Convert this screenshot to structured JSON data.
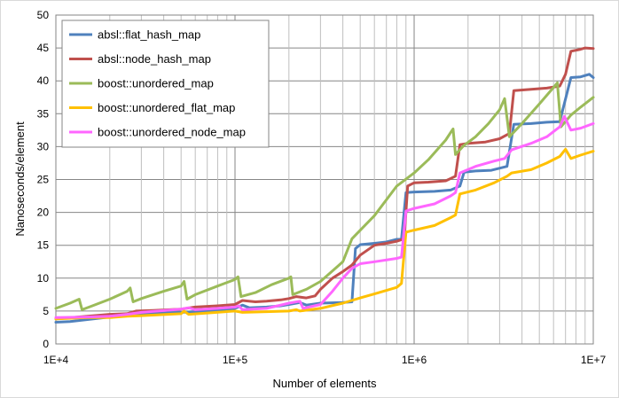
{
  "chart_data": {
    "type": "line",
    "title": "",
    "xlabel": "Number of elements",
    "ylabel": "Nanoseconds/element",
    "x_scale": "log",
    "xlim": [
      10000,
      10000000
    ],
    "ylim": [
      0,
      50
    ],
    "x_ticks": [
      10000,
      100000,
      1000000,
      10000000
    ],
    "x_tick_labels": [
      "1E+4",
      "1E+5",
      "1E+6",
      "1E+7"
    ],
    "y_ticks": [
      0,
      5,
      10,
      15,
      20,
      25,
      30,
      35,
      40,
      45,
      50
    ],
    "y_tick_labels": [
      "0",
      "5",
      "10",
      "15",
      "20",
      "25",
      "30",
      "35",
      "40",
      "45",
      "50"
    ],
    "grid": "major and minor gridlines",
    "legend_position": "top-left",
    "series": [
      {
        "name": "absl::flat_hash_map",
        "color": "#4f81bd",
        "points": [
          [
            10000,
            3.3
          ],
          [
            12000,
            3.4
          ],
          [
            15000,
            3.7
          ],
          [
            20000,
            4.1
          ],
          [
            25000,
            4.3
          ],
          [
            30000,
            4.5
          ],
          [
            40000,
            4.7
          ],
          [
            50000,
            4.8
          ],
          [
            60000,
            4.9
          ],
          [
            80000,
            5.1
          ],
          [
            100000,
            5.4
          ],
          [
            110000,
            5.9
          ],
          [
            120000,
            5.5
          ],
          [
            150000,
            5.6
          ],
          [
            180000,
            5.8
          ],
          [
            200000,
            6.0
          ],
          [
            230000,
            6.3
          ],
          [
            250000,
            5.9
          ],
          [
            300000,
            6.2
          ],
          [
            400000,
            6.3
          ],
          [
            450000,
            6.4
          ],
          [
            470000,
            14.5
          ],
          [
            500000,
            15.1
          ],
          [
            600000,
            15.3
          ],
          [
            700000,
            15.5
          ],
          [
            800000,
            15.9
          ],
          [
            850000,
            15.9
          ],
          [
            900000,
            23.0
          ],
          [
            1000000,
            23.1
          ],
          [
            1300000,
            23.2
          ],
          [
            1600000,
            23.4
          ],
          [
            1800000,
            24.0
          ],
          [
            1900000,
            26.1
          ],
          [
            2200000,
            26.3
          ],
          [
            2700000,
            26.4
          ],
          [
            3300000,
            27.0
          ],
          [
            3600000,
            33.4
          ],
          [
            4500000,
            33.5
          ],
          [
            5500000,
            33.7
          ],
          [
            6500000,
            33.8
          ],
          [
            7500000,
            40.5
          ],
          [
            8500000,
            40.6
          ],
          [
            9500000,
            41.0
          ],
          [
            10000000,
            40.5
          ]
        ]
      },
      {
        "name": "absl::node_hash_map",
        "color": "#c0504d",
        "points": [
          [
            10000,
            3.8
          ],
          [
            15000,
            4.2
          ],
          [
            20000,
            4.5
          ],
          [
            25000,
            4.6
          ],
          [
            28000,
            5.0
          ],
          [
            35000,
            5.1
          ],
          [
            50000,
            5.3
          ],
          [
            60000,
            5.6
          ],
          [
            80000,
            5.8
          ],
          [
            100000,
            6.0
          ],
          [
            110000,
            6.6
          ],
          [
            130000,
            6.4
          ],
          [
            150000,
            6.5
          ],
          [
            180000,
            6.7
          ],
          [
            200000,
            6.9
          ],
          [
            220000,
            7.2
          ],
          [
            250000,
            7.0
          ],
          [
            280000,
            7.3
          ],
          [
            300000,
            8.3
          ],
          [
            350000,
            10.0
          ],
          [
            400000,
            11.0
          ],
          [
            450000,
            12.0
          ],
          [
            500000,
            13.5
          ],
          [
            600000,
            15.0
          ],
          [
            700000,
            15.3
          ],
          [
            800000,
            15.6
          ],
          [
            880000,
            16.0
          ],
          [
            920000,
            24.0
          ],
          [
            1000000,
            24.5
          ],
          [
            1200000,
            24.6
          ],
          [
            1500000,
            24.8
          ],
          [
            1700000,
            25.5
          ],
          [
            1800000,
            30.3
          ],
          [
            2000000,
            30.5
          ],
          [
            2500000,
            30.7
          ],
          [
            3000000,
            31.2
          ],
          [
            3400000,
            32.0
          ],
          [
            3600000,
            38.5
          ],
          [
            4500000,
            38.7
          ],
          [
            5500000,
            38.9
          ],
          [
            6500000,
            39.2
          ],
          [
            7000000,
            41.0
          ],
          [
            7500000,
            44.5
          ],
          [
            8500000,
            44.8
          ],
          [
            9000000,
            45.0
          ],
          [
            10000000,
            44.9
          ]
        ]
      },
      {
        "name": "boost::unordered_map",
        "color": "#9bbb59",
        "points": [
          [
            10000,
            5.4
          ],
          [
            12000,
            6.2
          ],
          [
            13500,
            6.8
          ],
          [
            14000,
            5.2
          ],
          [
            16000,
            5.8
          ],
          [
            20000,
            6.8
          ],
          [
            25000,
            8.0
          ],
          [
            26000,
            8.5
          ],
          [
            27000,
            6.4
          ],
          [
            30000,
            6.9
          ],
          [
            40000,
            8.0
          ],
          [
            50000,
            8.8
          ],
          [
            52000,
            9.5
          ],
          [
            54000,
            6.8
          ],
          [
            60000,
            7.5
          ],
          [
            80000,
            8.8
          ],
          [
            100000,
            9.8
          ],
          [
            104000,
            10.2
          ],
          [
            108000,
            7.2
          ],
          [
            130000,
            7.8
          ],
          [
            160000,
            9.0
          ],
          [
            200000,
            10.0
          ],
          [
            205000,
            10.2
          ],
          [
            210000,
            7.5
          ],
          [
            250000,
            8.3
          ],
          [
            300000,
            9.5
          ],
          [
            400000,
            12.5
          ],
          [
            450000,
            16.0
          ],
          [
            600000,
            19.5
          ],
          [
            800000,
            24.0
          ],
          [
            1000000,
            26.0
          ],
          [
            1200000,
            28.0
          ],
          [
            1500000,
            31.0
          ],
          [
            1650000,
            32.7
          ],
          [
            1700000,
            28.8
          ],
          [
            1900000,
            30.2
          ],
          [
            2200000,
            31.5
          ],
          [
            2600000,
            33.5
          ],
          [
            3000000,
            35.6
          ],
          [
            3200000,
            37.3
          ],
          [
            3400000,
            31.5
          ],
          [
            4000000,
            33.5
          ],
          [
            5000000,
            36.5
          ],
          [
            6000000,
            39.0
          ],
          [
            6300000,
            39.7
          ],
          [
            6600000,
            33.0
          ],
          [
            7500000,
            34.8
          ],
          [
            8500000,
            36.0
          ],
          [
            10000000,
            37.5
          ]
        ]
      },
      {
        "name": "boost::unordered_flat_map",
        "color": "#ffc000",
        "points": [
          [
            10000,
            3.8
          ],
          [
            15000,
            4.0
          ],
          [
            20000,
            4.0
          ],
          [
            25000,
            4.2
          ],
          [
            30000,
            4.3
          ],
          [
            50000,
            4.6
          ],
          [
            52000,
            5.0
          ],
          [
            55000,
            4.5
          ],
          [
            70000,
            4.7
          ],
          [
            100000,
            5.0
          ],
          [
            110000,
            4.8
          ],
          [
            150000,
            4.9
          ],
          [
            200000,
            5.0
          ],
          [
            220000,
            5.2
          ],
          [
            230000,
            5.0
          ],
          [
            300000,
            5.4
          ],
          [
            400000,
            6.2
          ],
          [
            500000,
            7.0
          ],
          [
            600000,
            7.6
          ],
          [
            800000,
            8.6
          ],
          [
            850000,
            9.2
          ],
          [
            900000,
            17.0
          ],
          [
            1000000,
            17.3
          ],
          [
            1300000,
            18.0
          ],
          [
            1600000,
            19.2
          ],
          [
            1700000,
            19.6
          ],
          [
            1800000,
            22.8
          ],
          [
            2200000,
            23.4
          ],
          [
            2800000,
            24.5
          ],
          [
            3300000,
            25.5
          ],
          [
            3500000,
            26.0
          ],
          [
            4500000,
            26.5
          ],
          [
            5500000,
            27.5
          ],
          [
            6500000,
            28.5
          ],
          [
            7000000,
            29.6
          ],
          [
            7500000,
            28.2
          ],
          [
            8500000,
            28.7
          ],
          [
            10000000,
            29.3
          ]
        ]
      },
      {
        "name": "boost::unordered_node_map",
        "color": "#ff66ff",
        "points": [
          [
            10000,
            4.0
          ],
          [
            15000,
            4.1
          ],
          [
            20000,
            4.2
          ],
          [
            25000,
            4.5
          ],
          [
            30000,
            4.8
          ],
          [
            50000,
            5.3
          ],
          [
            55000,
            5.5
          ],
          [
            60000,
            5.2
          ],
          [
            80000,
            5.4
          ],
          [
            100000,
            5.6
          ],
          [
            105000,
            5.8
          ],
          [
            110000,
            5.2
          ],
          [
            150000,
            5.4
          ],
          [
            200000,
            6.2
          ],
          [
            230000,
            6.5
          ],
          [
            240000,
            5.4
          ],
          [
            300000,
            6.0
          ],
          [
            350000,
            8.0
          ],
          [
            400000,
            10.0
          ],
          [
            450000,
            11.5
          ],
          [
            500000,
            12.2
          ],
          [
            600000,
            12.5
          ],
          [
            800000,
            13.0
          ],
          [
            850000,
            13.2
          ],
          [
            900000,
            20.2
          ],
          [
            1000000,
            20.6
          ],
          [
            1300000,
            21.3
          ],
          [
            1600000,
            22.5
          ],
          [
            1700000,
            23.0
          ],
          [
            1800000,
            26.0
          ],
          [
            2200000,
            27.0
          ],
          [
            2800000,
            27.8
          ],
          [
            3200000,
            28.2
          ],
          [
            3500000,
            29.5
          ],
          [
            4500000,
            30.5
          ],
          [
            5500000,
            31.5
          ],
          [
            6500000,
            33.0
          ],
          [
            6900000,
            34.6
          ],
          [
            7500000,
            32.5
          ],
          [
            8500000,
            32.8
          ],
          [
            10000000,
            33.5
          ]
        ]
      }
    ]
  }
}
